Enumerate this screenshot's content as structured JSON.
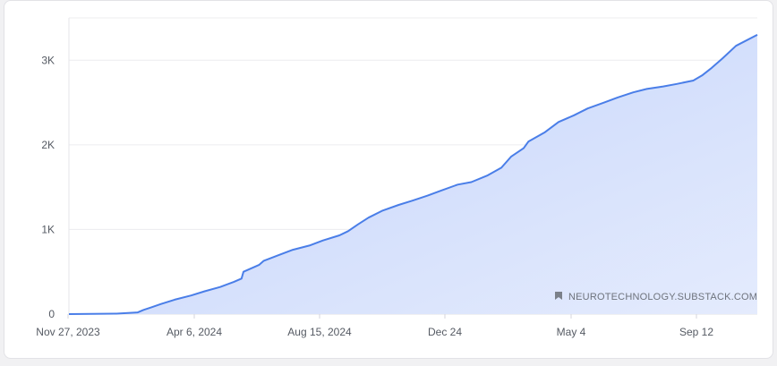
{
  "chart_data": {
    "type": "area",
    "title": "",
    "xlabel": "",
    "ylabel": "",
    "x_tick_labels": [
      "Nov 27, 2023",
      "Apr 6, 2024",
      "Aug 15, 2024",
      "Dec 24",
      "May 4",
      "Sep 12"
    ],
    "y_tick_labels": [
      "0",
      "1K",
      "2K",
      "3K"
    ],
    "ylim": [
      0,
      3500
    ],
    "xlim": [
      "2023-11-27",
      "2025-11-06"
    ],
    "grid": true,
    "line_color": "#4a7ee8",
    "fill_color": "#c9d7fb",
    "x": [
      "2023-11-27",
      "2024-01-15",
      "2024-02-06",
      "2024-02-12",
      "2024-02-20",
      "2024-03-01",
      "2024-03-15",
      "2024-04-01",
      "2024-04-15",
      "2024-05-01",
      "2024-05-15",
      "2024-05-23",
      "2024-05-25",
      "2024-06-10",
      "2024-06-15",
      "2024-07-01",
      "2024-07-15",
      "2024-08-01",
      "2024-08-15",
      "2024-09-01",
      "2024-09-10",
      "2024-09-20",
      "2024-10-01",
      "2024-10-15",
      "2024-11-01",
      "2024-11-15",
      "2024-12-01",
      "2024-12-15",
      "2025-01-01",
      "2025-01-15",
      "2025-02-01",
      "2025-02-15",
      "2025-02-25",
      "2025-03-10",
      "2025-03-15",
      "2025-04-01",
      "2025-04-15",
      "2025-05-01",
      "2025-05-15",
      "2025-06-01",
      "2025-06-15",
      "2025-07-01",
      "2025-07-15",
      "2025-08-01",
      "2025-08-15",
      "2025-09-01",
      "2025-09-10",
      "2025-09-20",
      "2025-10-01",
      "2025-10-15",
      "2025-11-06"
    ],
    "y": [
      0,
      5,
      20,
      50,
      80,
      120,
      170,
      220,
      270,
      320,
      380,
      420,
      500,
      580,
      630,
      700,
      760,
      810,
      870,
      930,
      980,
      1060,
      1140,
      1220,
      1290,
      1340,
      1400,
      1460,
      1530,
      1560,
      1640,
      1730,
      1860,
      1960,
      2040,
      2150,
      2270,
      2350,
      2430,
      2500,
      2560,
      2620,
      2660,
      2690,
      2720,
      2760,
      2820,
      2910,
      3020,
      3170,
      3300
    ]
  },
  "watermark": {
    "text": "NEUROTECHNOLOGY.SUBSTACK.COM",
    "icon": "bookmark-icon"
  }
}
